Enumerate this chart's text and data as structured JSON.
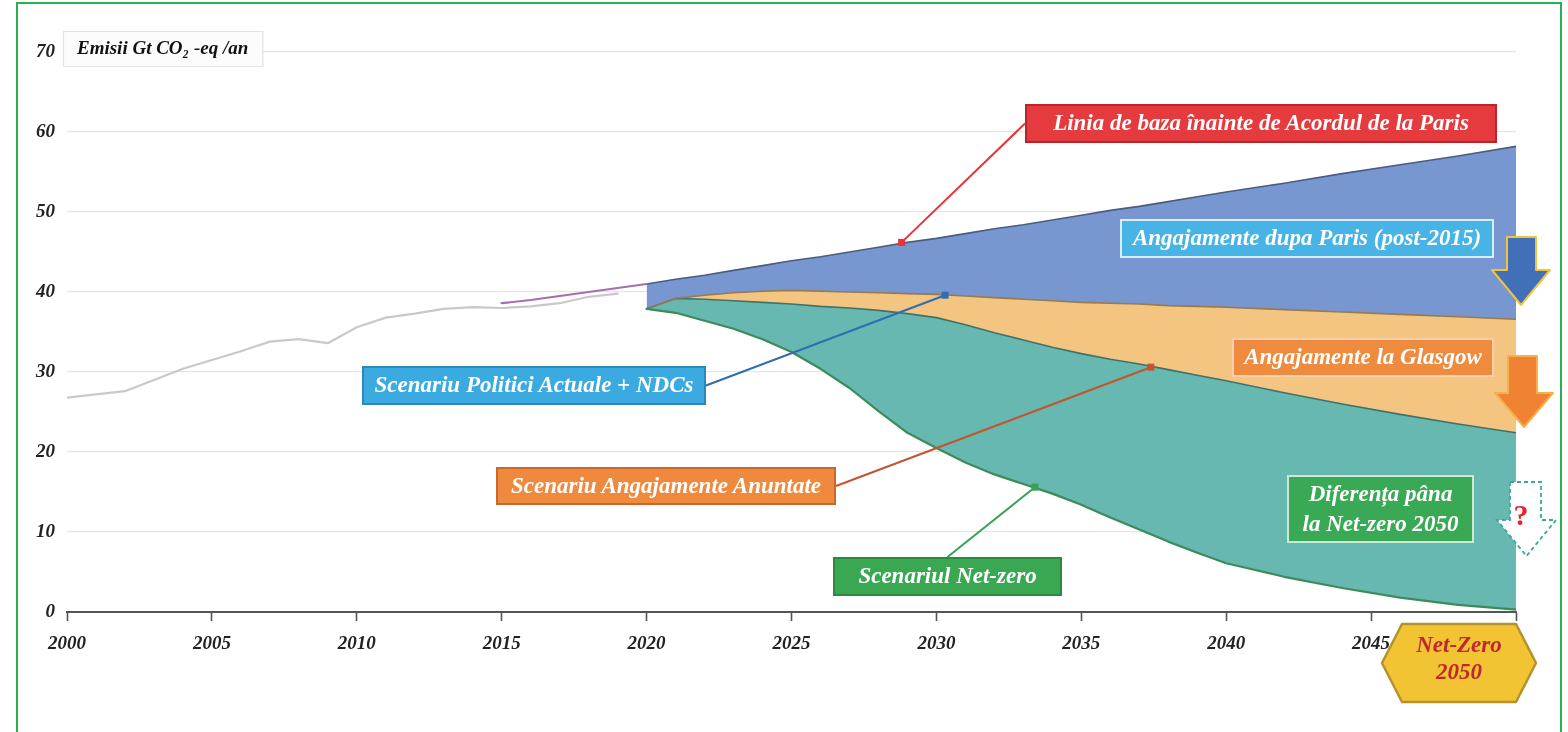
{
  "chart_data": {
    "type": "area",
    "ylabel": "Emisii Gt CO₂ -eq /an",
    "xlim": [
      2000,
      2050
    ],
    "xticks": [
      2000,
      2005,
      2010,
      2015,
      2020,
      2025,
      2030,
      2035,
      2040,
      2045,
      {
        "value": 2050,
        "label": null
      }
    ],
    "ylim": [
      0,
      70
    ],
    "yticks": [
      0,
      10,
      20,
      30,
      40,
      50,
      60,
      70
    ],
    "grid": "y",
    "marker": "none",
    "series": [
      {
        "type": "line",
        "color": "#c9c9c9",
        "x": [
          2000,
          2001,
          2002,
          2003,
          2004,
          2005,
          2006,
          2007,
          2008,
          2009,
          2010,
          2011,
          2012,
          2013,
          2014,
          2015,
          2016,
          2017,
          2018,
          2019
        ],
        "values": [
          26.8,
          27.2,
          27.6,
          29.0,
          30.4,
          31.5,
          32.6,
          33.8,
          34.1,
          33.6,
          35.6,
          36.8,
          37.3,
          37.9,
          38.1,
          38.0,
          38.2,
          38.6,
          39.4,
          39.8
        ]
      },
      {
        "type": "line",
        "color": "#a86cb2",
        "x": [
          2015,
          2016,
          2017,
          2018,
          2019,
          2020
        ],
        "values": [
          38.6,
          39.0,
          39.5,
          40.0,
          40.5,
          41.0
        ]
      },
      {
        "color": "#7896cf",
        "x": [
          2020,
          2021,
          2022,
          2023,
          2024,
          2025,
          2026,
          2027,
          2028,
          2029,
          2030,
          2031,
          2032,
          2033,
          2034,
          2035,
          2036,
          2037,
          2038,
          2039,
          2040,
          2042,
          2044,
          2046,
          2048,
          2050
        ],
        "values": [
          41.0,
          41.6,
          42.1,
          42.7,
          43.3,
          43.9,
          44.4,
          45.0,
          45.6,
          46.2,
          46.7,
          47.3,
          47.9,
          48.4,
          49.0,
          49.6,
          50.2,
          50.7,
          51.3,
          51.9,
          52.5,
          53.6,
          54.8,
          55.9,
          57.0,
          58.2
        ]
      },
      {
        "color": "#f4c481",
        "x": [
          2020,
          2021,
          2022,
          2023,
          2024,
          2025,
          2026,
          2027,
          2028,
          2029,
          2030,
          2031,
          2032,
          2033,
          2034,
          2035,
          2036,
          2037,
          2038,
          2039,
          2040,
          2042,
          2044,
          2046,
          2048,
          2050
        ],
        "values": [
          37.9,
          39.2,
          39.6,
          39.9,
          40.1,
          40.2,
          40.1,
          40.0,
          39.9,
          39.8,
          39.7,
          39.5,
          39.3,
          39.1,
          38.9,
          38.7,
          38.6,
          38.5,
          38.3,
          38.2,
          38.1,
          37.8,
          37.5,
          37.2,
          36.9,
          36.6
        ]
      },
      {
        "color": "#66b8b0",
        "x": [
          2020,
          2021,
          2022,
          2023,
          2024,
          2025,
          2026,
          2027,
          2028,
          2029,
          2030,
          2031,
          2032,
          2033,
          2034,
          2035,
          2036,
          2037,
          2038,
          2039,
          2040,
          2042,
          2044,
          2046,
          2048,
          2050
        ],
        "values": [
          37.9,
          39.2,
          39.1,
          38.9,
          38.7,
          38.5,
          38.2,
          38.0,
          37.7,
          37.3,
          36.8,
          35.9,
          34.9,
          34.0,
          33.1,
          32.3,
          31.6,
          31.0,
          30.3,
          29.6,
          28.9,
          27.4,
          26.0,
          24.7,
          23.5,
          22.4
        ]
      },
      {
        "type": "line",
        "color": "#3d8b5a",
        "x": [
          2020,
          2021,
          2022,
          2023,
          2024,
          2025,
          2026,
          2027,
          2028,
          2029,
          2030,
          2031,
          2032,
          2033,
          2034,
          2035,
          2036,
          2037,
          2038,
          2039,
          2040,
          2042,
          2044,
          2046,
          2048,
          2050
        ],
        "values": [
          37.9,
          37.4,
          36.4,
          35.4,
          34.1,
          32.5,
          30.4,
          28.0,
          25.1,
          22.4,
          20.5,
          18.7,
          17.2,
          16.0,
          14.8,
          13.4,
          11.8,
          10.3,
          8.8,
          7.4,
          6.1,
          4.4,
          3.0,
          1.8,
          0.9,
          0.3
        ]
      }
    ],
    "annotations": [
      {
        "text": "Linia de baza înainte de Acordul de la Paris",
        "x": 2028.8,
        "y": 46.2
      },
      "Angajamente dupa Paris (post-2015)",
      "Angajamente la Glasgow",
      "Diferența pâna la Net-zero 2050",
      {
        "text": "Scenariu Politici Actuale + NDCs",
        "x": 2030.3,
        "y": 39.6
      },
      {
        "text": "Scenariu Angajamente Anuntate",
        "x": 2037.4,
        "y": 30.6
      },
      {
        "text": "Scenariul Net-zero",
        "x": 2033.4,
        "y": 15.6
      },
      "?",
      "Net-Zero 2050"
    ]
  }
}
